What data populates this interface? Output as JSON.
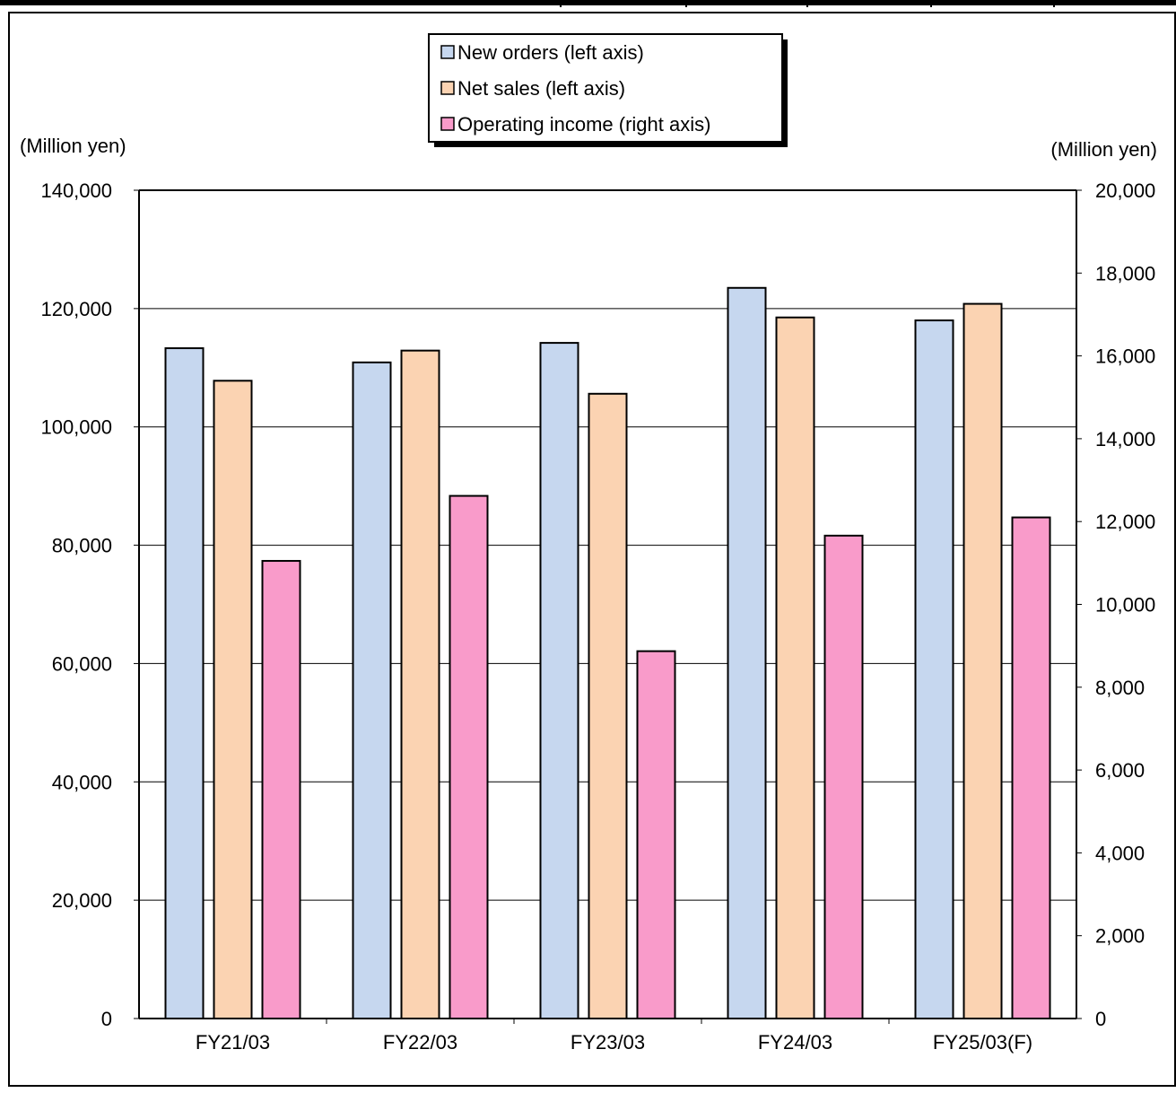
{
  "chart_data": {
    "type": "bar",
    "title": "",
    "left_unit_label": "(Million yen)",
    "right_unit_label": "(Million yen)",
    "categories": [
      "FY21/03",
      "FY22/03",
      "FY23/03",
      "FY24/03",
      "FY25/03(F)"
    ],
    "series": [
      {
        "name": "New orders (left axis)",
        "axis": "left",
        "color": "#c6d7ef",
        "values": [
          113300,
          110900,
          114200,
          123500,
          118000
        ]
      },
      {
        "name": "Net sales (left axis)",
        "axis": "left",
        "color": "#fbd3b2",
        "values": [
          107800,
          112900,
          105600,
          118500,
          120800
        ]
      },
      {
        "name": "Operating income (right axis)",
        "axis": "right",
        "color": "#f99bca",
        "values": [
          11050,
          12620,
          8870,
          11660,
          12100
        ]
      }
    ],
    "y_left": {
      "min": 0,
      "max": 140000,
      "ticks": [
        "0",
        "20,000",
        "40,000",
        "60,000",
        "80,000",
        "100,000",
        "120,000",
        "140,000"
      ]
    },
    "y_right": {
      "min": 0,
      "max": 20000,
      "ticks": [
        "0",
        "2,000",
        "4,000",
        "6,000",
        "8,000",
        "10,000",
        "12,000",
        "14,000",
        "16,000",
        "18,000",
        "20,000"
      ]
    },
    "grid": true,
    "legend_position": "top-center"
  }
}
